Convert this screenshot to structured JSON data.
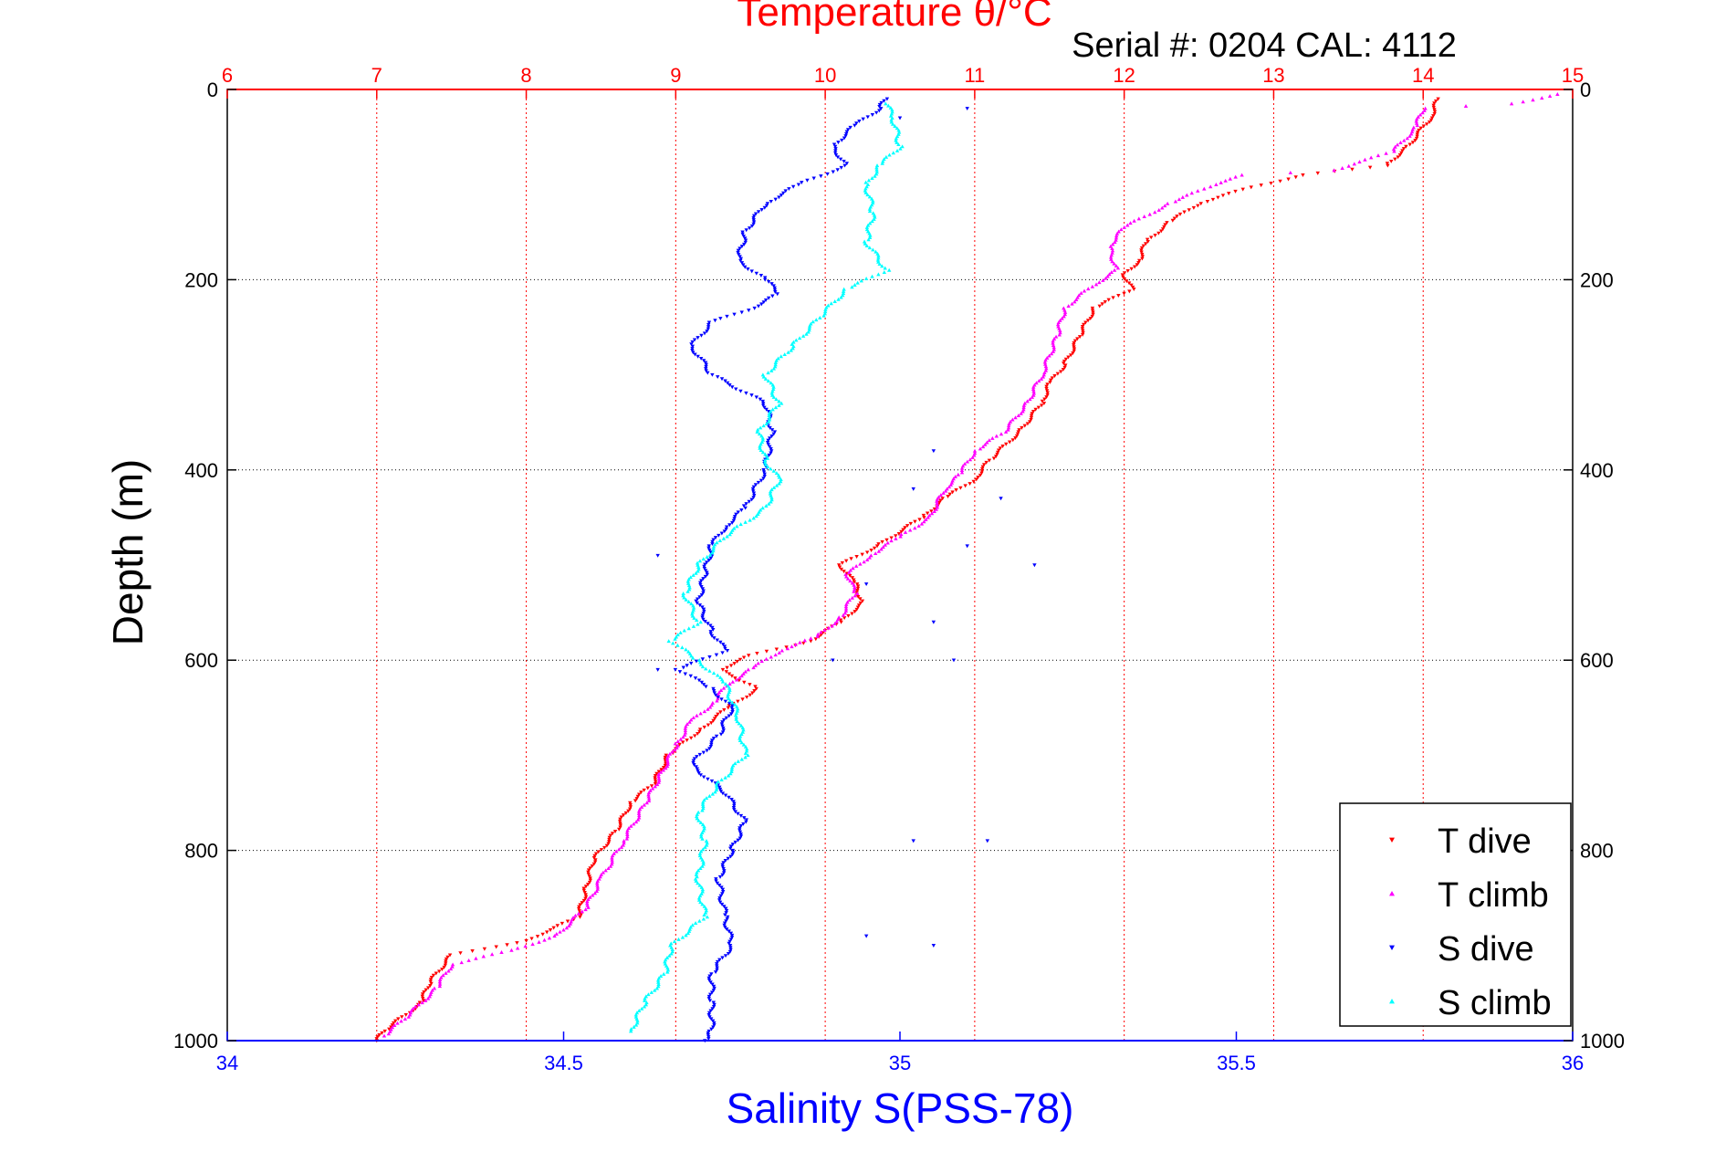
{
  "chart_data": {
    "type": "scatter",
    "top_title": "Temperature θ/°C",
    "annotation": "Serial #: 0204  CAL: 4112",
    "xlabel_bottom": "Salinity S(PSS-78)",
    "ylabel": "Depth (m)",
    "temperature_axis": {
      "range": [
        6,
        15
      ],
      "ticks": [
        "6",
        "7",
        "8",
        "9",
        "10",
        "11",
        "12",
        "13",
        "14",
        "15"
      ],
      "color": "#ff0000"
    },
    "salinity_axis": {
      "range": [
        34,
        36
      ],
      "ticks": [
        "34",
        "34.5",
        "35",
        "35.5",
        "36"
      ],
      "color": "#0000ff"
    },
    "depth_axis": {
      "range": [
        0,
        1000
      ],
      "reversed": true,
      "ticks": [
        "0",
        "200",
        "400",
        "600",
        "800",
        "1000"
      ]
    },
    "grid": true,
    "legend": {
      "placement": "bottom-right",
      "entries": [
        "T dive",
        "T climb",
        "S dive",
        "S climb"
      ]
    },
    "series": [
      {
        "name": "T dive",
        "axis": "temperature",
        "color": "#ff0000",
        "marker": "triangle-down",
        "points": [
          [
            14.1,
            10
          ],
          [
            14.05,
            30
          ],
          [
            13.9,
            60
          ],
          [
            13.75,
            80
          ],
          [
            13.2,
            90
          ],
          [
            12.8,
            105
          ],
          [
            12.5,
            120
          ],
          [
            12.3,
            140
          ],
          [
            12.15,
            160
          ],
          [
            12.1,
            180
          ],
          [
            12.0,
            195
          ],
          [
            12.05,
            210
          ],
          [
            11.8,
            230
          ],
          [
            11.7,
            260
          ],
          [
            11.6,
            290
          ],
          [
            11.5,
            310
          ],
          [
            11.45,
            330
          ],
          [
            11.3,
            360
          ],
          [
            11.1,
            390
          ],
          [
            11.0,
            410
          ],
          [
            10.8,
            430
          ],
          [
            10.65,
            450
          ],
          [
            10.35,
            480
          ],
          [
            10.1,
            500
          ],
          [
            10.2,
            520
          ],
          [
            10.25,
            540
          ],
          [
            10.1,
            560
          ],
          [
            9.9,
            580
          ],
          [
            9.5,
            595
          ],
          [
            9.3,
            610
          ],
          [
            9.55,
            630
          ],
          [
            9.35,
            650
          ],
          [
            9.15,
            675
          ],
          [
            8.95,
            700
          ],
          [
            8.85,
            730
          ],
          [
            8.7,
            750
          ],
          [
            8.6,
            780
          ],
          [
            8.45,
            810
          ],
          [
            8.4,
            840
          ],
          [
            8.35,
            870
          ],
          [
            8.0,
            895
          ],
          [
            7.5,
            910
          ],
          [
            7.35,
            940
          ],
          [
            7.3,
            960
          ],
          [
            7.05,
            990
          ],
          [
            7.0,
            1000
          ]
        ]
      },
      {
        "name": "T climb",
        "axis": "temperature",
        "color": "#ff00ff",
        "marker": "triangle-up",
        "points": [
          [
            14.9,
            5
          ],
          [
            14.6,
            15
          ],
          [
            14.0,
            20
          ],
          [
            13.95,
            40
          ],
          [
            13.8,
            65
          ],
          [
            13.4,
            85
          ],
          [
            12.8,
            90
          ],
          [
            12.6,
            100
          ],
          [
            12.3,
            120
          ],
          [
            12.0,
            145
          ],
          [
            11.9,
            165
          ],
          [
            11.95,
            190
          ],
          [
            11.8,
            205
          ],
          [
            11.6,
            230
          ],
          [
            11.55,
            260
          ],
          [
            11.45,
            300
          ],
          [
            11.35,
            330
          ],
          [
            11.2,
            360
          ],
          [
            11.0,
            380
          ],
          [
            10.9,
            405
          ],
          [
            10.8,
            420
          ],
          [
            10.7,
            450
          ],
          [
            10.5,
            470
          ],
          [
            10.3,
            490
          ],
          [
            10.15,
            510
          ],
          [
            10.2,
            530
          ],
          [
            10.1,
            555
          ],
          [
            9.95,
            575
          ],
          [
            9.7,
            590
          ],
          [
            9.5,
            610
          ],
          [
            9.35,
            625
          ],
          [
            9.25,
            645
          ],
          [
            9.1,
            665
          ],
          [
            9.0,
            690
          ],
          [
            8.9,
            720
          ],
          [
            8.8,
            750
          ],
          [
            8.65,
            790
          ],
          [
            8.5,
            830
          ],
          [
            8.4,
            860
          ],
          [
            8.2,
            890
          ],
          [
            7.9,
            905
          ],
          [
            7.5,
            920
          ],
          [
            7.4,
            945
          ],
          [
            7.2,
            975
          ],
          [
            7.05,
            995
          ]
        ]
      },
      {
        "name": "S dive",
        "axis": "salinity",
        "color": "#0000ff",
        "marker": "triangle-down",
        "points": [
          [
            34.98,
            10
          ],
          [
            34.97,
            20
          ],
          [
            34.93,
            40
          ],
          [
            34.9,
            60
          ],
          [
            34.92,
            80
          ],
          [
            34.85,
            100
          ],
          [
            34.8,
            120
          ],
          [
            34.77,
            150
          ],
          [
            34.76,
            180
          ],
          [
            34.8,
            200
          ],
          [
            34.82,
            215
          ],
          [
            34.78,
            230
          ],
          [
            34.72,
            245
          ],
          [
            34.69,
            270
          ],
          [
            34.72,
            300
          ],
          [
            34.8,
            330
          ],
          [
            34.81,
            360
          ],
          [
            34.8,
            400
          ],
          [
            34.77,
            440
          ],
          [
            34.74,
            460
          ],
          [
            34.72,
            480
          ],
          [
            34.71,
            510
          ],
          [
            34.7,
            540
          ],
          [
            34.72,
            570
          ],
          [
            34.74,
            590
          ],
          [
            34.67,
            610
          ],
          [
            34.72,
            630
          ],
          [
            34.75,
            650
          ],
          [
            34.73,
            680
          ],
          [
            34.69,
            710
          ],
          [
            34.74,
            740
          ],
          [
            34.77,
            770
          ],
          [
            34.75,
            800
          ],
          [
            34.73,
            830
          ],
          [
            34.74,
            870
          ],
          [
            34.75,
            900
          ],
          [
            34.72,
            930
          ],
          [
            34.72,
            960
          ],
          [
            34.72,
            990
          ],
          [
            34.71,
            1000
          ]
        ]
      },
      {
        "name": "S climb",
        "axis": "salinity",
        "color": "#00ffff",
        "marker": "triangle-up",
        "points": [
          [
            34.98,
            15
          ],
          [
            34.99,
            30
          ],
          [
            35.0,
            60
          ],
          [
            34.97,
            80
          ],
          [
            34.95,
            100
          ],
          [
            34.96,
            130
          ],
          [
            34.95,
            160
          ],
          [
            34.98,
            190
          ],
          [
            34.92,
            210
          ],
          [
            34.88,
            240
          ],
          [
            34.84,
            270
          ],
          [
            34.8,
            300
          ],
          [
            34.82,
            330
          ],
          [
            34.79,
            360
          ],
          [
            34.8,
            390
          ],
          [
            34.82,
            410
          ],
          [
            34.8,
            440
          ],
          [
            34.74,
            470
          ],
          [
            34.7,
            500
          ],
          [
            34.68,
            530
          ],
          [
            34.7,
            560
          ],
          [
            34.66,
            580
          ],
          [
            34.7,
            600
          ],
          [
            34.74,
            625
          ],
          [
            34.76,
            660
          ],
          [
            34.77,
            700
          ],
          [
            34.73,
            730
          ],
          [
            34.7,
            760
          ],
          [
            34.71,
            790
          ],
          [
            34.7,
            830
          ],
          [
            34.71,
            870
          ],
          [
            34.66,
            900
          ],
          [
            34.65,
            930
          ],
          [
            34.62,
            960
          ],
          [
            34.6,
            990
          ]
        ]
      }
    ],
    "scattered_s_dive_outliers": [
      [
        35.0,
        30
      ],
      [
        35.1,
        20
      ],
      [
        35.05,
        380
      ],
      [
        35.02,
        420
      ],
      [
        35.1,
        480
      ],
      [
        35.15,
        430
      ],
      [
        35.2,
        500
      ],
      [
        34.95,
        520
      ],
      [
        35.05,
        560
      ],
      [
        35.08,
        600
      ],
      [
        34.9,
        600
      ],
      [
        34.95,
        890
      ],
      [
        35.05,
        900
      ],
      [
        35.02,
        790
      ],
      [
        35.13,
        790
      ],
      [
        34.64,
        490
      ],
      [
        34.64,
        610
      ]
    ]
  }
}
